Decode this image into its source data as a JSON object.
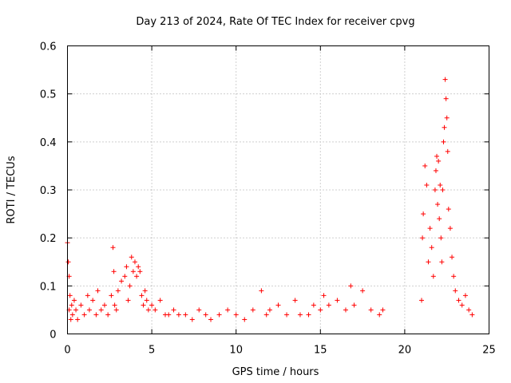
{
  "chart_data": {
    "type": "scatter",
    "title": "Day 213 of 2024, Rate Of TEC Index for receiver cpvg",
    "xlabel": "GPS time / hours",
    "ylabel": "ROTI / TECUs",
    "xlim": [
      0,
      25
    ],
    "ylim": [
      0,
      0.6
    ],
    "xticks": [
      0,
      5,
      10,
      15,
      20,
      25
    ],
    "yticks": [
      0,
      0.1,
      0.2,
      0.3,
      0.4,
      0.5,
      0.6
    ],
    "xtick_labels": [
      "0",
      "5",
      "10",
      "15",
      "20",
      "25"
    ],
    "ytick_labels": [
      "0",
      "0.1",
      "0.2",
      "0.3",
      "0.4",
      "0.5",
      "0.6"
    ],
    "grid": true,
    "marker": "+",
    "color": "#ff0000",
    "series": [
      {
        "x": [
          0.0,
          0.05,
          0.1,
          0.1,
          0.15,
          0.2,
          0.25,
          0.3,
          0.4,
          0.5,
          0.6,
          0.8,
          1.0,
          1.2,
          1.3,
          1.5,
          1.7,
          1.8,
          2.0,
          2.2,
          2.4,
          2.6,
          2.7,
          2.75,
          2.8,
          2.9,
          3.0,
          3.2,
          3.4,
          3.5,
          3.6,
          3.7,
          3.8,
          3.9,
          4.0,
          4.1,
          4.2,
          4.3,
          4.4,
          4.5,
          4.6,
          4.7,
          4.8,
          5.0,
          5.2,
          5.5,
          5.8,
          6.0,
          6.3,
          6.6,
          7.0,
          7.4,
          7.8,
          8.2,
          8.5,
          9.0,
          9.5,
          10.0,
          10.5,
          11.0,
          11.5,
          11.8,
          12.0,
          12.5,
          13.0,
          13.5,
          13.8,
          14.3,
          14.6,
          15.0,
          15.2,
          15.5,
          16.0,
          16.5,
          16.8,
          17.0,
          17.5,
          18.0,
          18.5,
          18.7,
          21.0,
          21.05,
          21.1,
          21.2,
          21.3,
          21.4,
          21.5,
          21.6,
          21.7,
          21.8,
          21.85,
          21.9,
          21.95,
          22.0,
          22.05,
          22.1,
          22.15,
          22.2,
          22.25,
          22.3,
          22.35,
          22.4,
          22.45,
          22.5,
          22.55,
          22.6,
          22.7,
          22.8,
          22.9,
          23.0,
          23.2,
          23.4,
          23.6,
          23.8,
          24.0
        ],
        "y": [
          0.19,
          0.15,
          0.12,
          0.05,
          0.08,
          0.03,
          0.06,
          0.04,
          0.07,
          0.05,
          0.03,
          0.06,
          0.04,
          0.08,
          0.05,
          0.07,
          0.04,
          0.09,
          0.05,
          0.06,
          0.04,
          0.08,
          0.18,
          0.13,
          0.06,
          0.05,
          0.09,
          0.11,
          0.12,
          0.14,
          0.07,
          0.1,
          0.16,
          0.13,
          0.15,
          0.12,
          0.14,
          0.13,
          0.08,
          0.06,
          0.09,
          0.07,
          0.05,
          0.06,
          0.05,
          0.07,
          0.04,
          0.04,
          0.05,
          0.04,
          0.04,
          0.03,
          0.05,
          0.04,
          0.03,
          0.04,
          0.05,
          0.04,
          0.03,
          0.05,
          0.09,
          0.04,
          0.05,
          0.06,
          0.04,
          0.07,
          0.04,
          0.04,
          0.06,
          0.05,
          0.08,
          0.06,
          0.07,
          0.05,
          0.1,
          0.06,
          0.09,
          0.05,
          0.04,
          0.05,
          0.07,
          0.2,
          0.25,
          0.35,
          0.31,
          0.15,
          0.22,
          0.18,
          0.12,
          0.3,
          0.34,
          0.37,
          0.27,
          0.36,
          0.24,
          0.31,
          0.2,
          0.15,
          0.3,
          0.4,
          0.43,
          0.53,
          0.49,
          0.45,
          0.38,
          0.26,
          0.22,
          0.16,
          0.12,
          0.09,
          0.07,
          0.06,
          0.08,
          0.05,
          0.04
        ]
      }
    ]
  }
}
